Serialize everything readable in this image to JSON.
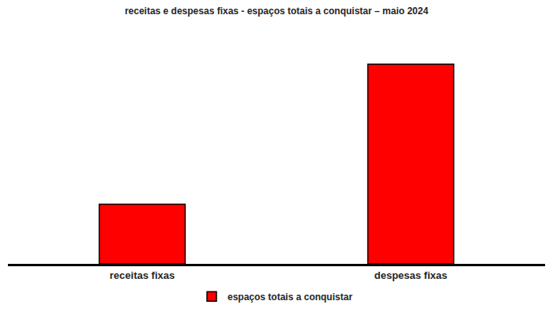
{
  "chart_data": {
    "type": "bar",
    "title": "receitas e despesas fixas - espaços totais a conquistar – maio 2024",
    "categories": [
      "receitas fixas",
      "despesas fixas"
    ],
    "series": [
      {
        "name": "espaços totais a conquistar",
        "color": "#ff0000",
        "values": [
          77,
          258
        ]
      }
    ],
    "ylim": [
      0,
      300
    ],
    "tick_labels": "x",
    "grid": false,
    "legend": "bottom"
  }
}
